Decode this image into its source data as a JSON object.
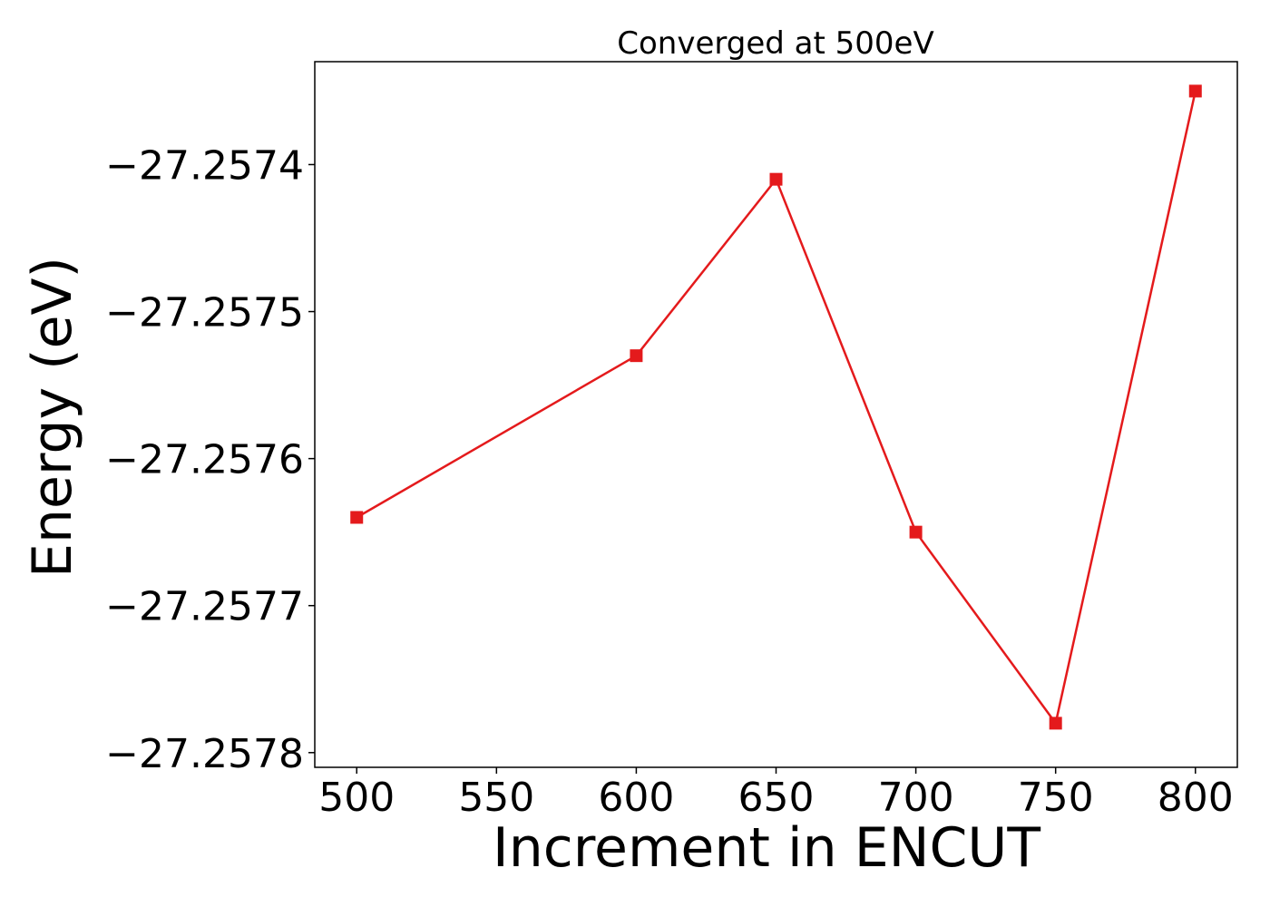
{
  "chart_data": {
    "type": "line",
    "title": "Converged at 500eV",
    "xlabel": "Increment in ENCUT",
    "ylabel": "Energy (eV)",
    "xlim": [
      485,
      815
    ],
    "ylim": [
      -27.25781,
      -27.25733
    ],
    "xticks": [
      500,
      550,
      600,
      650,
      700,
      750,
      800
    ],
    "xtick_labels": [
      "500",
      "550",
      "600",
      "650",
      "700",
      "750",
      "800"
    ],
    "yticks": [
      -27.2574,
      -27.2575,
      -27.2576,
      -27.2577,
      -27.2578
    ],
    "ytick_labels": [
      "−27.2574",
      "−27.2575",
      "−27.2576",
      "−27.2577",
      "−27.2578"
    ],
    "grid": false,
    "legend": "none",
    "marker": "square",
    "line_color": "#e41a1c",
    "series": [
      {
        "x": [
          500,
          600,
          650,
          700,
          750,
          800
        ],
        "y": [
          -27.25764,
          -27.25753,
          -27.25741,
          -27.25765,
          -27.25778,
          -27.25735
        ]
      }
    ]
  }
}
